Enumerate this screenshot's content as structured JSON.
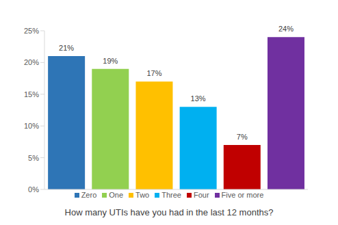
{
  "chart_data": {
    "type": "bar",
    "x_label": "How many UTIs have you had in the last 12 months?",
    "categories": [
      "Zero",
      "One",
      "Two",
      "Three",
      "Four",
      "Five or more"
    ],
    "values": [
      21,
      19,
      17,
      13,
      7,
      24
    ],
    "value_labels": [
      "21%",
      "19%",
      "17%",
      "13%",
      "7%",
      "24%"
    ],
    "colors": [
      "#2e75b6",
      "#92d050",
      "#ffc000",
      "#00b0f0",
      "#c00000",
      "#7030a0"
    ],
    "ylim": [
      0,
      25
    ],
    "yticks": [
      {
        "value": 0,
        "label": "0%"
      },
      {
        "value": 5,
        "label": "5%"
      },
      {
        "value": 10,
        "label": "10%"
      },
      {
        "value": 15,
        "label": "15%"
      },
      {
        "value": 20,
        "label": "20%"
      },
      {
        "value": 25,
        "label": "25%"
      }
    ],
    "grid": false,
    "data_labels": true,
    "tick_labels": "y",
    "legend": "bottom"
  }
}
